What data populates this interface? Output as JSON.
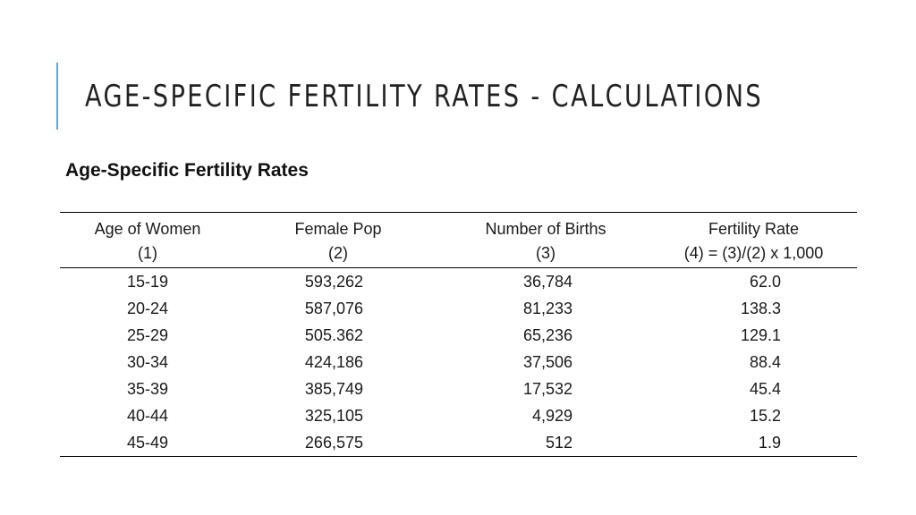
{
  "slide": {
    "title": "AGE-SPECIFIC FERTILITY RATES - CALCULATIONS",
    "section_heading": "Age-Specific Fertility Rates",
    "accent_color": "#5aa9d6"
  },
  "table": {
    "headers": [
      {
        "label": "Age of Women",
        "sub": "(1)"
      },
      {
        "label": "Female Pop",
        "sub": "(2)"
      },
      {
        "label": "Number of Births",
        "sub": "(3)"
      },
      {
        "label": "Fertility Rate",
        "sub": "(4) = (3)/(2) x 1,000"
      }
    ],
    "rows": [
      {
        "age": "15-19",
        "female_pop": "593,262",
        "births": "36,784",
        "rate": "62.0"
      },
      {
        "age": "20-24",
        "female_pop": "587,076",
        "births": "81,233",
        "rate": "138.3"
      },
      {
        "age": "25-29",
        "female_pop": "505.362",
        "births": "65,236",
        "rate": "129.1"
      },
      {
        "age": "30-34",
        "female_pop": "424,186",
        "births": "37,506",
        "rate": "88.4"
      },
      {
        "age": "35-39",
        "female_pop": "385,749",
        "births": "17,532",
        "rate": "45.4"
      },
      {
        "age": "40-44",
        "female_pop": "325,105",
        "births": "4,929",
        "rate": "15.2"
      },
      {
        "age": "45-49",
        "female_pop": "266,575",
        "births": "512",
        "rate": "1.9"
      }
    ]
  }
}
